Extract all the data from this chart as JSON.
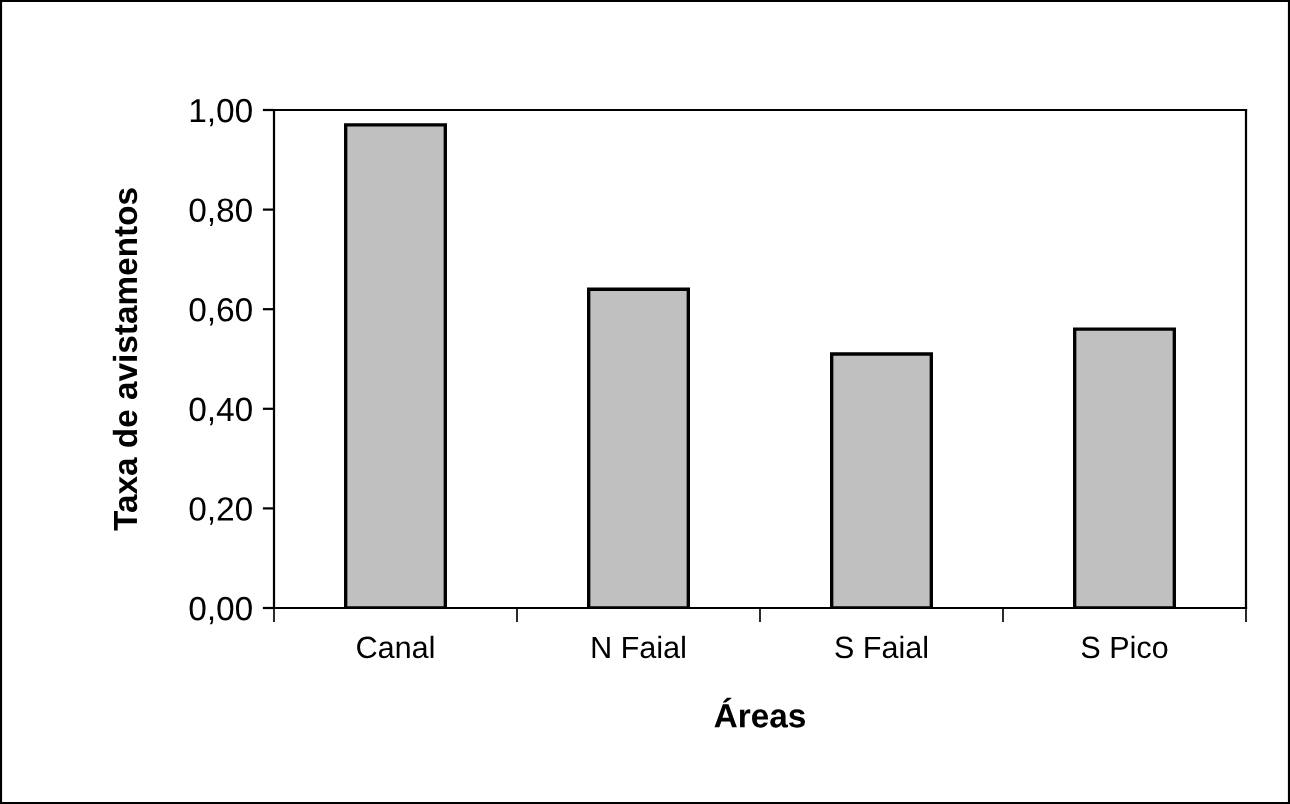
{
  "chart_data": {
    "type": "bar",
    "xlabel": "Áreas",
    "ylabel": "Taxa de avistamentos",
    "categories": [
      "Canal",
      "N Faial",
      "S Faial",
      "S Pico"
    ],
    "values": [
      0.97,
      0.64,
      0.51,
      0.56
    ],
    "color": "#c0c0c0",
    "ylim": [
      0,
      1
    ],
    "yticks": [
      {
        "value": 0,
        "label": "0,00"
      },
      {
        "value": 0.2,
        "label": "0,20"
      },
      {
        "value": 0.4,
        "label": "0,40"
      },
      {
        "value": 0.6,
        "label": "0,60"
      },
      {
        "value": 0.8,
        "label": "0,80"
      },
      {
        "value": 1,
        "label": "1,00"
      }
    ],
    "grid": false,
    "legend": false
  }
}
